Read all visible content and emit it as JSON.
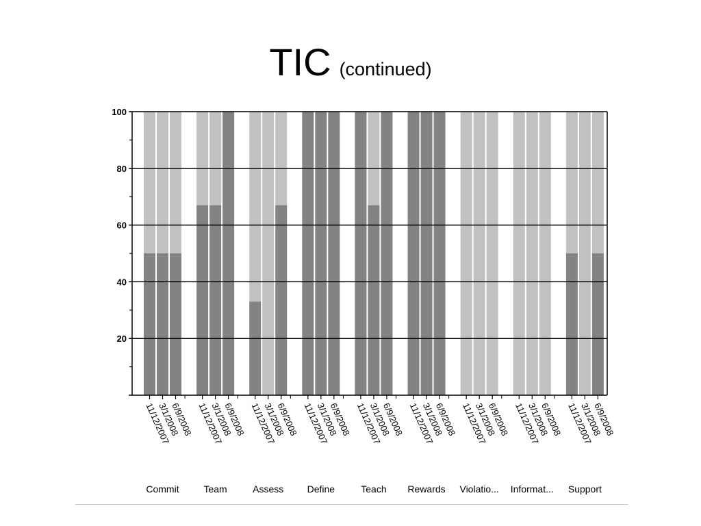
{
  "slide": {
    "title": "TIC",
    "subtitle": "(continued)"
  },
  "colors": {
    "dark": "#838383",
    "light": "#c1c1c1",
    "axis": "#000000"
  },
  "chart_data": {
    "type": "bar",
    "stacked": true,
    "title": "",
    "xlabel": "",
    "ylabel": "",
    "ylim": [
      0,
      100
    ],
    "yticks": [
      "20",
      "40",
      "60",
      "80",
      "100"
    ],
    "grid": true,
    "dates": [
      "11/12/2007",
      "3/1/2008",
      "6/9/2008"
    ],
    "groups": [
      {
        "name": "Commit",
        "values": [
          50,
          50,
          50
        ]
      },
      {
        "name": "Team",
        "values": [
          67,
          67,
          100
        ]
      },
      {
        "name": "Assess",
        "values": [
          33,
          0,
          67
        ]
      },
      {
        "name": "Define",
        "values": [
          100,
          100,
          100
        ]
      },
      {
        "name": "Teach",
        "values": [
          100,
          67,
          100
        ]
      },
      {
        "name": "Rewards",
        "values": [
          100,
          100,
          100
        ]
      },
      {
        "name": "Violatio...",
        "values": [
          0,
          0,
          0
        ]
      },
      {
        "name": "Informat...",
        "values": [
          0,
          0,
          0
        ]
      },
      {
        "name": "Support",
        "values": [
          50,
          0,
          50
        ]
      }
    ]
  }
}
